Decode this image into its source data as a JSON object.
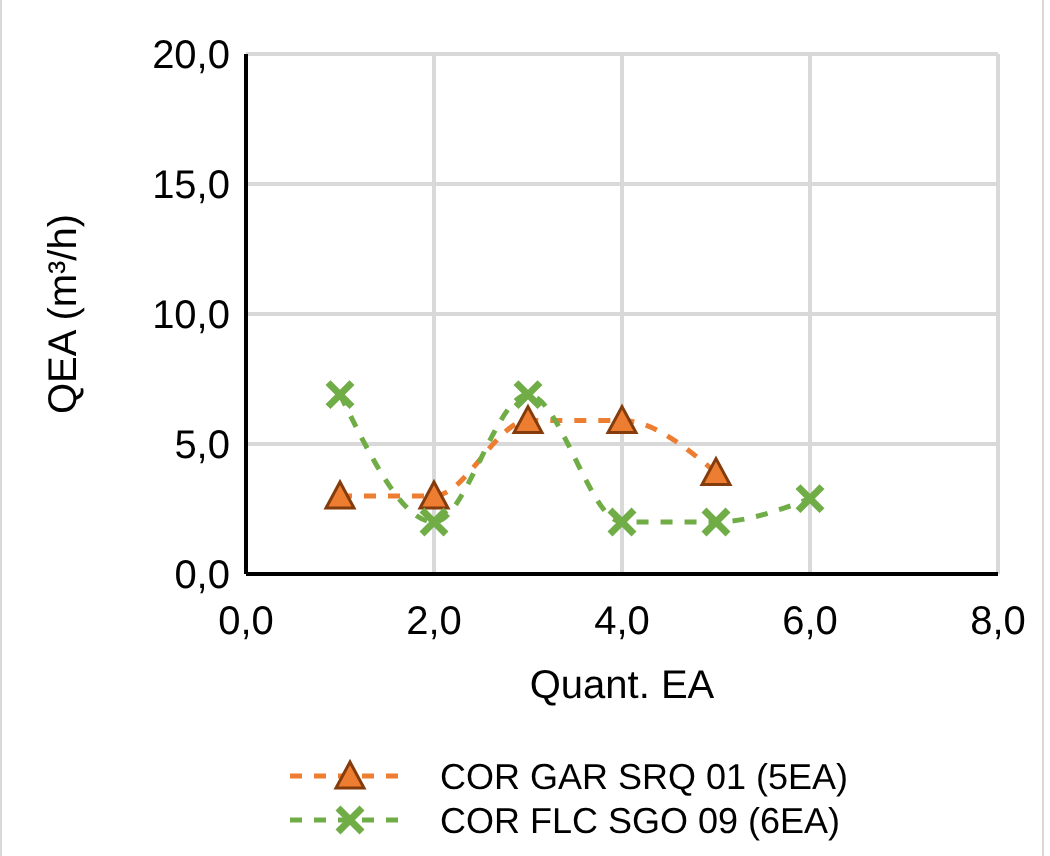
{
  "chart_data": {
    "type": "line",
    "xlabel": "Quant. EA",
    "ylabel": "QEA (m³/h)",
    "xlim": [
      0,
      8
    ],
    "xticks": [
      {
        "value": 0,
        "label": "0,0"
      },
      {
        "value": 2,
        "label": "2,0"
      },
      {
        "value": 4,
        "label": "4,0"
      },
      {
        "value": 6,
        "label": "6,0"
      },
      {
        "value": 8,
        "label": "8,0"
      }
    ],
    "ylim": [
      0,
      20
    ],
    "yticks": [
      {
        "value": 0,
        "label": "0,0"
      },
      {
        "value": 5,
        "label": "5,0"
      },
      {
        "value": 10,
        "label": "10,0"
      },
      {
        "value": 15,
        "label": "15,0"
      },
      {
        "value": 20,
        "label": "20,0"
      }
    ],
    "grid": true,
    "legend": "bottom",
    "line_style": "dashed",
    "series": [
      {
        "name": "COR GAR SRQ 01 (5EA)",
        "color": "#ed7d31",
        "marker": "triangle",
        "x": [
          1,
          2,
          3,
          4,
          5
        ],
        "values": [
          3,
          3,
          5.9,
          5.9,
          3.9
        ]
      },
      {
        "name": "COR FLC SGO 09 (6EA)",
        "color": "#70ad47",
        "marker": "cross",
        "x": [
          1,
          2,
          3,
          4,
          5,
          6
        ],
        "values": [
          6.9,
          2,
          6.9,
          2,
          2,
          2.9
        ]
      }
    ]
  }
}
